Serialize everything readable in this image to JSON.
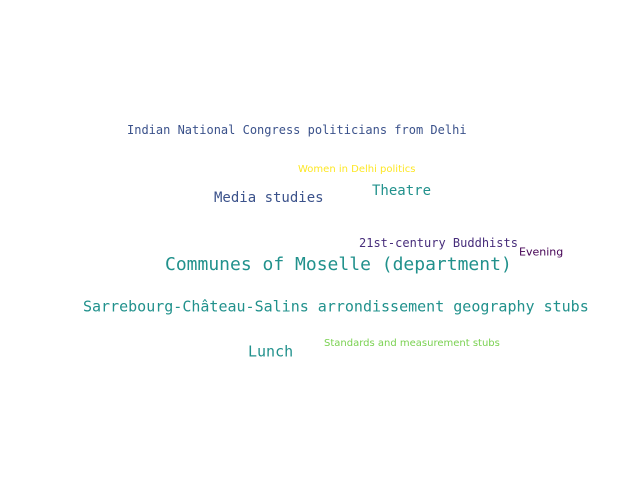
{
  "words": [
    {
      "text": "Indian National Congress politicians from Delhi",
      "color": "#3b528b"
    },
    {
      "text": "Women in Delhi politics",
      "color": "#fde725"
    },
    {
      "text": "Media studies",
      "color": "#3b528b"
    },
    {
      "text": "Theatre",
      "color": "#21918c"
    },
    {
      "text": "21st-century Buddhists",
      "color": "#472d7b"
    },
    {
      "text": "Evening",
      "color": "#440154"
    },
    {
      "text": "Communes of Moselle (department)",
      "color": "#21918c"
    },
    {
      "text": "Sarrebourg-Château-Salins arrondissement geography stubs",
      "color": "#21918c"
    },
    {
      "text": "Lunch",
      "color": "#21918c"
    },
    {
      "text": "Standards and measurement stubs",
      "color": "#7ad151"
    }
  ]
}
